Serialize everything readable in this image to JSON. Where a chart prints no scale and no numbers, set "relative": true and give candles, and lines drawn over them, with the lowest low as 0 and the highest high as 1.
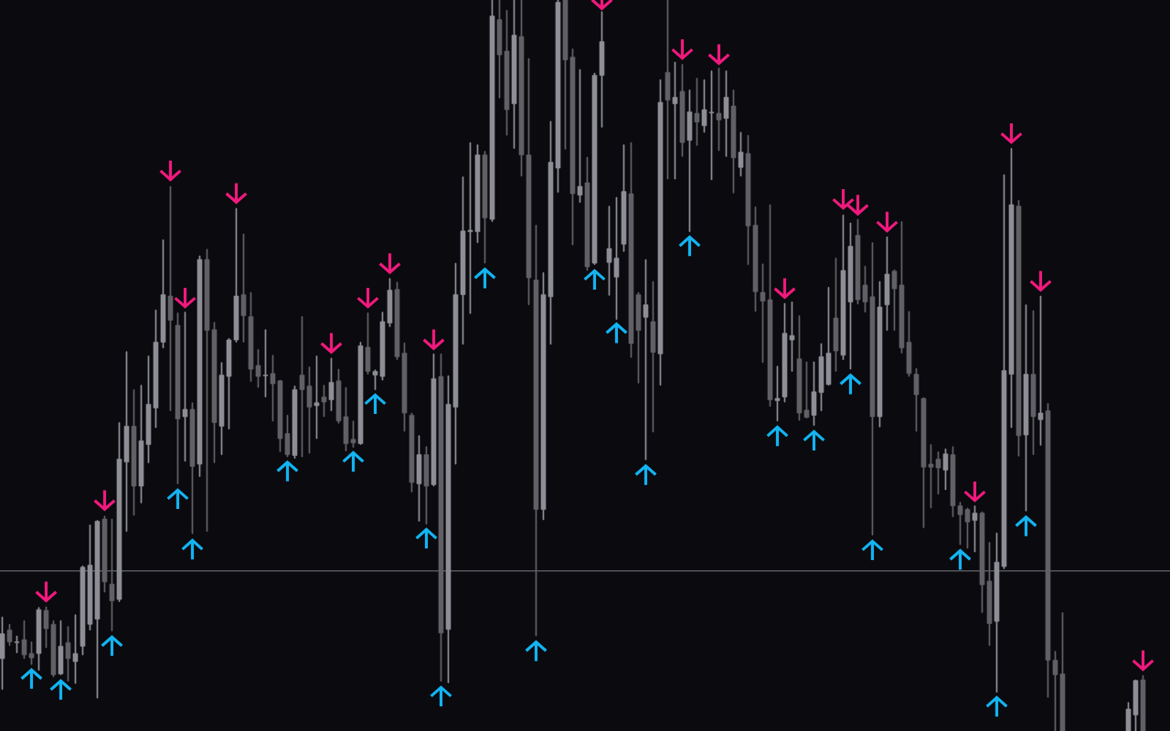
{
  "chart_data": {
    "type": "candlestick",
    "relative": true,
    "categories": [
      null,
      null,
      null,
      null,
      null,
      null,
      null,
      null,
      null,
      null,
      null,
      null,
      null,
      null,
      null,
      null,
      null,
      null,
      null,
      null,
      null,
      null,
      null,
      null,
      null,
      null,
      null,
      null,
      null,
      null,
      null,
      null,
      null,
      null,
      null,
      null,
      null,
      null,
      null,
      null,
      null,
      null,
      null,
      null,
      null,
      null,
      null,
      null,
      null,
      null,
      null,
      null,
      null,
      null,
      null,
      null,
      null,
      null,
      null,
      null,
      null,
      null,
      null,
      null,
      null,
      null,
      null,
      null,
      null,
      null,
      null,
      null,
      null,
      null,
      null,
      null,
      null,
      null,
      null,
      null,
      null,
      null,
      null,
      null,
      null,
      null,
      null,
      null,
      null,
      null,
      null,
      null,
      null,
      null,
      null,
      null,
      null,
      null,
      null,
      null,
      null,
      null,
      null,
      null,
      null,
      null,
      null,
      null,
      null,
      null,
      null,
      null,
      null,
      null,
      null,
      null,
      null,
      null,
      null,
      null,
      null,
      null,
      null,
      null,
      null,
      null,
      null,
      null,
      null,
      null,
      null,
      null,
      null,
      null,
      null,
      null,
      null,
      null,
      null,
      null,
      null,
      null,
      null,
      null,
      null,
      null,
      null,
      null,
      null,
      null,
      null,
      null,
      null,
      null,
      null,
      null,
      null
    ],
    "ohlc": [
      [
        0.099,
        0.156,
        0.057,
        0.133
      ],
      [
        0.138,
        0.146,
        0.117,
        0.122
      ],
      [
        0.121,
        0.13,
        0.107,
        0.122
      ],
      [
        0.125,
        0.151,
        0.099,
        0.104
      ],
      [
        0.106,
        0.122,
        0.091,
        0.1
      ],
      [
        0.106,
        0.169,
        0.083,
        0.166
      ],
      [
        0.165,
        0.17,
        0.114,
        0.14
      ],
      [
        0.146,
        0.151,
        0.074,
        0.077
      ],
      [
        0.078,
        0.151,
        0.077,
        0.116
      ],
      [
        0.121,
        0.143,
        0.068,
        0.099
      ],
      [
        0.095,
        0.159,
        0.065,
        0.106
      ],
      [
        0.116,
        0.226,
        0.104,
        0.224
      ],
      [
        0.146,
        0.282,
        0.138,
        0.227
      ],
      [
        0.153,
        0.288,
        0.045,
        0.287
      ],
      [
        0.29,
        0.294,
        0.19,
        0.204
      ],
      [
        0.201,
        0.29,
        0.137,
        0.178
      ],
      [
        0.18,
        0.422,
        0.177,
        0.372
      ],
      [
        0.368,
        0.519,
        0.273,
        0.417
      ],
      [
        0.417,
        0.467,
        0.295,
        0.335
      ],
      [
        0.335,
        0.473,
        0.312,
        0.397
      ],
      [
        0.392,
        0.513,
        0.367,
        0.447
      ],
      [
        0.442,
        0.576,
        0.415,
        0.532
      ],
      [
        0.532,
        0.672,
        0.524,
        0.597
      ],
      [
        0.595,
        0.745,
        0.438,
        0.562
      ],
      [
        0.555,
        0.572,
        0.338,
        0.427
      ],
      [
        0.43,
        0.573,
        0.369,
        0.44
      ],
      [
        0.44,
        0.449,
        0.27,
        0.362
      ],
      [
        0.365,
        0.65,
        0.348,
        0.645
      ],
      [
        0.645,
        0.659,
        0.273,
        0.548
      ],
      [
        0.549,
        0.559,
        0.367,
        0.422
      ],
      [
        0.417,
        0.504,
        0.378,
        0.487
      ],
      [
        0.485,
        0.537,
        0.413,
        0.535
      ],
      [
        0.535,
        0.715,
        0.532,
        0.595
      ],
      [
        0.597,
        0.68,
        0.532,
        0.568
      ],
      [
        0.567,
        0.6,
        0.478,
        0.495
      ],
      [
        0.5,
        0.522,
        0.47,
        0.485
      ],
      [
        0.486,
        0.549,
        0.457,
        0.487
      ],
      [
        0.489,
        0.514,
        0.424,
        0.475
      ],
      [
        0.479,
        0.48,
        0.382,
        0.4
      ],
      [
        0.407,
        0.432,
        0.375,
        0.378
      ],
      [
        0.377,
        0.472,
        0.373,
        0.467
      ],
      [
        0.487,
        0.567,
        0.375,
        0.467
      ],
      [
        0.472,
        0.498,
        0.38,
        0.443
      ],
      [
        0.445,
        0.513,
        0.4,
        0.449
      ],
      [
        0.457,
        0.473,
        0.43,
        0.45
      ],
      [
        0.453,
        0.51,
        0.438,
        0.477
      ],
      [
        0.479,
        0.495,
        0.421,
        0.424
      ],
      [
        0.43,
        0.47,
        0.383,
        0.393
      ],
      [
        0.399,
        0.424,
        0.388,
        0.394
      ],
      [
        0.393,
        0.532,
        0.392,
        0.527
      ],
      [
        0.525,
        0.572,
        0.488,
        0.492
      ],
      [
        0.487,
        0.494,
        0.467,
        0.492
      ],
      [
        0.485,
        0.573,
        0.48,
        0.56
      ],
      [
        0.558,
        0.619,
        0.553,
        0.603
      ],
      [
        0.604,
        0.614,
        0.508,
        0.512
      ],
      [
        0.517,
        0.531,
        0.41,
        0.435
      ],
      [
        0.432,
        0.435,
        0.327,
        0.34
      ],
      [
        0.338,
        0.404,
        0.287,
        0.378
      ],
      [
        0.378,
        0.389,
        0.283,
        0.335
      ],
      [
        0.337,
        0.516,
        0.335,
        0.482
      ],
      [
        0.485,
        0.516,
        0.068,
        0.134
      ],
      [
        0.139,
        0.486,
        0.066,
        0.447
      ],
      [
        0.443,
        0.64,
        0.365,
        0.597
      ],
      [
        0.597,
        0.758,
        0.529,
        0.684
      ],
      [
        0.683,
        0.805,
        0.571,
        0.685
      ],
      [
        0.683,
        0.802,
        0.668,
        0.788
      ],
      [
        0.788,
        0.793,
        0.64,
        0.702
      ],
      [
        0.7,
        1.0,
        0.697,
        0.978
      ],
      [
        0.973,
        1.0,
        0.866,
        0.925
      ],
      [
        0.93,
        0.986,
        0.815,
        0.85
      ],
      [
        0.858,
        1.0,
        0.797,
        0.952
      ],
      [
        0.95,
        1.0,
        0.759,
        0.788
      ],
      [
        0.788,
        0.92,
        0.583,
        0.62
      ],
      [
        0.617,
        0.692,
        0.13,
        0.303
      ],
      [
        0.303,
        0.627,
        0.289,
        0.597
      ],
      [
        0.594,
        0.834,
        0.529,
        0.778
      ],
      [
        0.77,
        1.0,
        0.737,
        0.997
      ],
      [
        1.0,
        1.0,
        0.796,
        0.918
      ],
      [
        0.922,
        0.933,
        0.665,
        0.735
      ],
      [
        0.733,
        0.905,
        0.723,
        0.745
      ],
      [
        0.75,
        0.785,
        0.63,
        0.635
      ],
      [
        0.64,
        0.9,
        0.638,
        0.897
      ],
      [
        0.897,
        0.984,
        0.826,
        0.943
      ],
      [
        0.641,
        0.718,
        0.596,
        0.66
      ],
      [
        0.621,
        0.73,
        0.563,
        0.647
      ],
      [
        0.666,
        0.802,
        0.656,
        0.738
      ],
      [
        0.735,
        0.805,
        0.511,
        0.53
      ],
      [
        0.597,
        0.6,
        0.476,
        0.548
      ],
      [
        0.566,
        0.645,
        0.371,
        0.583
      ],
      [
        0.56,
        0.615,
        0.409,
        0.518
      ],
      [
        0.516,
        0.891,
        0.473,
        0.86
      ],
      [
        0.901,
        1.0,
        0.755,
        0.863
      ],
      [
        0.858,
        0.915,
        0.755,
        0.867
      ],
      [
        0.875,
        0.912,
        0.786,
        0.805
      ],
      [
        0.808,
        0.877,
        0.683,
        0.847
      ],
      [
        0.845,
        0.893,
        0.801,
        0.833
      ],
      [
        0.828,
        0.891,
        0.819,
        0.85
      ],
      [
        0.8455,
        0.903,
        0.754,
        0.8465
      ],
      [
        0.845,
        0.907,
        0.794,
        0.836
      ],
      [
        0.838,
        0.903,
        0.786,
        0.867
      ],
      [
        0.855,
        0.877,
        0.736,
        0.784
      ],
      [
        0.771,
        0.819,
        0.759,
        0.792
      ],
      [
        0.79,
        0.815,
        0.638,
        0.691
      ],
      [
        0.692,
        0.717,
        0.574,
        0.601
      ],
      [
        0.6,
        0.639,
        0.504,
        0.588
      ],
      [
        0.59,
        0.72,
        0.444,
        0.453
      ],
      [
        0.452,
        0.499,
        0.424,
        0.455
      ],
      [
        0.457,
        0.585,
        0.45,
        0.544
      ],
      [
        0.535,
        0.587,
        0.492,
        0.541
      ],
      [
        0.509,
        0.568,
        0.425,
        0.435
      ],
      [
        0.439,
        0.505,
        0.428,
        0.429
      ],
      [
        0.432,
        0.505,
        0.418,
        0.464
      ],
      [
        0.463,
        0.53,
        0.438,
        0.512
      ],
      [
        0.474,
        0.607,
        0.473,
        0.517
      ],
      [
        0.565,
        0.647,
        0.492,
        0.52
      ],
      [
        0.514,
        0.706,
        0.508,
        0.63
      ],
      [
        0.587,
        0.695,
        0.495,
        0.663
      ],
      [
        0.678,
        0.7,
        0.584,
        0.59
      ],
      [
        0.61,
        0.636,
        0.573,
        0.587
      ],
      [
        0.594,
        0.668,
        0.268,
        0.43
      ],
      [
        0.43,
        0.615,
        0.416,
        0.58
      ],
      [
        0.583,
        0.676,
        0.548,
        0.625
      ],
      [
        0.629,
        0.631,
        0.548,
        0.605
      ],
      [
        0.61,
        0.697,
        0.517,
        0.524
      ],
      [
        0.532,
        0.574,
        0.485,
        0.489
      ],
      [
        0.488,
        0.496,
        0.41,
        0.46
      ],
      [
        0.455,
        0.456,
        0.278,
        0.361
      ],
      [
        0.365,
        0.392,
        0.305,
        0.361
      ],
      [
        0.372,
        0.382,
        0.324,
        0.36
      ],
      [
        0.357,
        0.386,
        0.33,
        0.379
      ],
      [
        0.378,
        0.389,
        0.293,
        0.308
      ],
      [
        0.308,
        0.313,
        0.255,
        0.296
      ],
      [
        0.303,
        0.305,
        0.25,
        0.286
      ],
      [
        0.288,
        0.308,
        0.245,
        0.298
      ],
      [
        0.298,
        0.3,
        0.162,
        0.2
      ],
      [
        0.205,
        0.258,
        0.117,
        0.147
      ],
      [
        0.15,
        0.271,
        0.053,
        0.231
      ],
      [
        0.225,
        0.761,
        0.222,
        0.493
      ],
      [
        0.488,
        0.797,
        0.415,
        0.72
      ],
      [
        0.718,
        0.726,
        0.376,
        0.404
      ],
      [
        0.405,
        0.583,
        0.301,
        0.488
      ],
      [
        0.488,
        0.575,
        0.378,
        0.43
      ],
      [
        0.426,
        0.595,
        0.391,
        0.435
      ],
      [
        0.438,
        0.448,
        0.046,
        0.097
      ],
      [
        0.097,
        0.109,
        0.0,
        0.077
      ],
      [
        0.078,
        0.162,
        0.0,
        0.0
      ],
      null,
      null,
      null,
      null,
      null,
      null,
      null,
      null,
      [
        0.0,
        0.039,
        0.0,
        0.03
      ],
      [
        0.022,
        0.07,
        0.0,
        0.069
      ],
      [
        0.07,
        0.076,
        0.0,
        0.0
      ]
    ],
    "colors": [
      "#8e8e96",
      "#606066",
      "#8e8e96",
      "#606066",
      "#606066",
      "#8e8e96",
      "#606066",
      "#606066",
      "#8e8e96",
      "#606066",
      "#8e8e96",
      "#8e8e96",
      "#8e8e96",
      "#8e8e96",
      "#606066",
      "#606066",
      "#8e8e96",
      "#8e8e96",
      "#606066",
      "#8e8e96",
      "#8e8e96",
      "#8e8e96",
      "#8e8e96",
      "#606066",
      "#606066",
      "#8e8e96",
      "#606066",
      "#8e8e96",
      "#606066",
      "#606066",
      "#8e8e96",
      "#8e8e96",
      "#8e8e96",
      "#606066",
      "#606066",
      "#606066",
      "#8e8e96",
      "#606066",
      "#606066",
      "#606066",
      "#8e8e96",
      "#606066",
      "#606066",
      "#8e8e96",
      "#606066",
      "#8e8e96",
      "#606066",
      "#606066",
      "#606066",
      "#8e8e96",
      "#606066",
      "#8e8e96",
      "#8e8e96",
      "#8e8e96",
      "#606066",
      "#606066",
      "#606066",
      "#8e8e96",
      "#606066",
      "#8e8e96",
      "#606066",
      "#8e8e96",
      "#8e8e96",
      "#8e8e96",
      "#8e8e96",
      "#8e8e96",
      "#606066",
      "#8e8e96",
      "#606066",
      "#606066",
      "#8e8e96",
      "#606066",
      "#606066",
      "#606066",
      "#8e8e96",
      "#8e8e96",
      "#8e8e96",
      "#606066",
      "#606066",
      "#8e8e96",
      "#606066",
      "#8e8e96",
      "#8e8e96",
      "#8e8e96",
      "#8e8e96",
      "#8e8e96",
      "#606066",
      "#606066",
      "#8e8e96",
      "#606066",
      "#8e8e96",
      "#606066",
      "#8e8e96",
      "#606066",
      "#8e8e96",
      "#606066",
      "#8e8e96",
      "#8e8e96",
      "#606066",
      "#8e8e96",
      "#606066",
      "#8e8e96",
      "#606066",
      "#606066",
      "#606066",
      "#606066",
      "#8e8e96",
      "#8e8e96",
      "#8e8e96",
      "#606066",
      "#606066",
      "#8e8e96",
      "#8e8e96",
      "#8e8e96",
      "#606066",
      "#8e8e96",
      "#8e8e96",
      "#606066",
      "#606066",
      "#606066",
      "#8e8e96",
      "#8e8e96",
      "#606066",
      "#606066",
      "#606066",
      "#606066",
      "#606066",
      "#606066",
      "#606066",
      "#8e8e96",
      "#606066",
      "#606066",
      "#606066",
      "#8e8e96",
      "#606066",
      "#606066",
      "#8e8e96",
      "#8e8e96",
      "#8e8e96",
      "#606066",
      "#8e8e96",
      "#606066",
      "#8e8e96",
      "#606066",
      "#606066",
      "#606066",
      null,
      null,
      null,
      null,
      null,
      null,
      null,
      null,
      "#8e8e96",
      "#8e8e96",
      "#606066"
    ],
    "series": [
      {
        "type": "scatter",
        "color": "#f0197d",
        "values": [
          null,
          null,
          null,
          null,
          null,
          null,
          0.19,
          null,
          null,
          null,
          null,
          null,
          null,
          null,
          0.315,
          null,
          null,
          null,
          null,
          null,
          null,
          null,
          null,
          0.766,
          null,
          0.592,
          null,
          null,
          null,
          null,
          null,
          null,
          0.735,
          null,
          null,
          null,
          null,
          null,
          null,
          null,
          null,
          null,
          null,
          null,
          null,
          0.53,
          null,
          null,
          null,
          null,
          0.592,
          null,
          null,
          0.639,
          null,
          null,
          null,
          null,
          null,
          0.535,
          null,
          null,
          null,
          null,
          null,
          null,
          null,
          null,
          null,
          null,
          null,
          null,
          null,
          null,
          null,
          null,
          null,
          null,
          null,
          null,
          null,
          null,
          1.0,
          null,
          null,
          null,
          null,
          null,
          null,
          null,
          null,
          null,
          null,
          0.932,
          null,
          null,
          null,
          null,
          0.925,
          null,
          null,
          null,
          null,
          null,
          null,
          null,
          null,
          0.605,
          null,
          null,
          null,
          null,
          null,
          null,
          null,
          0.727,
          null,
          0.719,
          null,
          null,
          null,
          0.696,
          null,
          null,
          null,
          null,
          null,
          null,
          null,
          null,
          null,
          null,
          null,
          0.327,
          null,
          null,
          null,
          null,
          0.817,
          null,
          null,
          null,
          0.615,
          null,
          null,
          null,
          null,
          null,
          null,
          null,
          null,
          null,
          null,
          null,
          null,
          null,
          0.096
        ]
      },
      {
        "type": "scatter",
        "color": "#12b4f2",
        "values": [
          null,
          null,
          null,
          null,
          0.072,
          null,
          null,
          null,
          0.057,
          null,
          null,
          null,
          null,
          null,
          null,
          0.117,
          null,
          null,
          null,
          null,
          null,
          null,
          null,
          null,
          0.318,
          null,
          0.249,
          null,
          null,
          null,
          null,
          null,
          null,
          null,
          null,
          null,
          null,
          null,
          null,
          0.356,
          null,
          null,
          null,
          null,
          null,
          null,
          null,
          null,
          0.369,
          null,
          null,
          0.448,
          null,
          null,
          null,
          null,
          null,
          null,
          0.264,
          null,
          0.048,
          null,
          null,
          null,
          null,
          null,
          0.62,
          null,
          null,
          null,
          null,
          null,
          null,
          0.11,
          null,
          null,
          null,
          null,
          null,
          null,
          null,
          0.618,
          null,
          null,
          0.545,
          null,
          null,
          null,
          0.351,
          null,
          null,
          null,
          null,
          null,
          0.664,
          null,
          null,
          null,
          null,
          null,
          null,
          null,
          null,
          null,
          null,
          null,
          0.404,
          null,
          null,
          null,
          null,
          0.398,
          null,
          null,
          null,
          null,
          0.475,
          null,
          null,
          0.248,
          null,
          null,
          null,
          null,
          null,
          null,
          null,
          null,
          null,
          null,
          null,
          0.235,
          null,
          null,
          null,
          null,
          0.034,
          null,
          null,
          null,
          0.281,
          null,
          null,
          null,
          null,
          null,
          null,
          null,
          null,
          null,
          null,
          null,
          null,
          null,
          null,
          null,
          null
        ]
      }
    ],
    "ref_lines": [
      {
        "axis": "y",
        "value": 0.219,
        "color": "#55555c"
      }
    ]
  }
}
